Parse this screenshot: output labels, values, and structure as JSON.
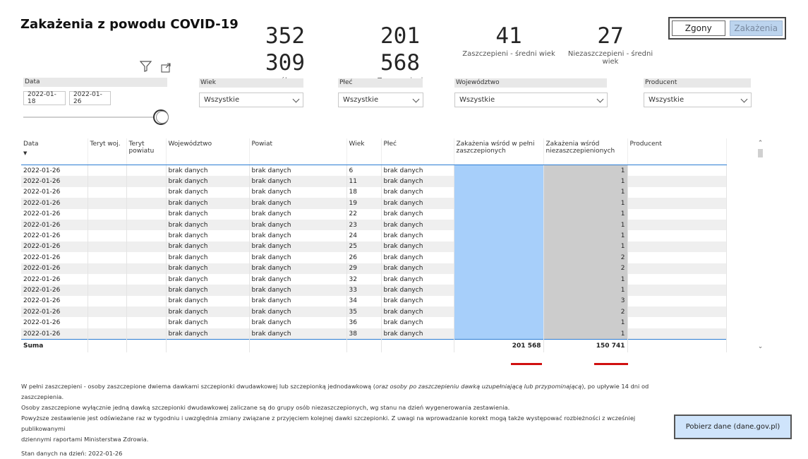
{
  "title": "Zakażenia z powodu COVID-19",
  "kpis": [
    {
      "value": "352 309",
      "label": "ogółem"
    },
    {
      "value": "201 568",
      "label": "Zaszczepieni"
    },
    {
      "value": "41",
      "label": "Zaszczepieni - średni wiek"
    },
    {
      "value": "27",
      "label": "Niezaszczepieni - średni wiek"
    }
  ],
  "toggle": {
    "deaths": "Zgony",
    "infections": "Zakażenia"
  },
  "icons": {
    "filter": "filter-icon",
    "expand": "expand-icon"
  },
  "filters": {
    "date": {
      "label": "Data",
      "from": "2022-01-18",
      "to": "2022-01-26"
    },
    "age": {
      "label": "Wiek",
      "value": "Wszystkie"
    },
    "sex": {
      "label": "Płeć",
      "value": "Wszystkie"
    },
    "voivodeship": {
      "label": "Województwo",
      "value": "Wszystkie"
    },
    "producer": {
      "label": "Producent",
      "value": "Wszystkie"
    }
  },
  "table": {
    "headers": [
      "Data",
      "Teryt woj.",
      "Teryt powiatu",
      "Województwo",
      "Powiat",
      "Wiek",
      "Płeć",
      "Zakażenia wśród w pełni zaszczepionych",
      "Zakażenia wśród niezaszczepienionych",
      "Producent"
    ],
    "rows": [
      {
        "date": "2022-01-26",
        "woj": "brak danych",
        "powiat": "brak danych",
        "age": "6",
        "sex": "brak danych",
        "unvac": "1"
      },
      {
        "date": "2022-01-26",
        "woj": "brak danych",
        "powiat": "brak danych",
        "age": "11",
        "sex": "brak danych",
        "unvac": "1"
      },
      {
        "date": "2022-01-26",
        "woj": "brak danych",
        "powiat": "brak danych",
        "age": "18",
        "sex": "brak danych",
        "unvac": "1"
      },
      {
        "date": "2022-01-26",
        "woj": "brak danych",
        "powiat": "brak danych",
        "age": "19",
        "sex": "brak danych",
        "unvac": "1"
      },
      {
        "date": "2022-01-26",
        "woj": "brak danych",
        "powiat": "brak danych",
        "age": "22",
        "sex": "brak danych",
        "unvac": "1"
      },
      {
        "date": "2022-01-26",
        "woj": "brak danych",
        "powiat": "brak danych",
        "age": "23",
        "sex": "brak danych",
        "unvac": "1"
      },
      {
        "date": "2022-01-26",
        "woj": "brak danych",
        "powiat": "brak danych",
        "age": "24",
        "sex": "brak danych",
        "unvac": "1"
      },
      {
        "date": "2022-01-26",
        "woj": "brak danych",
        "powiat": "brak danych",
        "age": "25",
        "sex": "brak danych",
        "unvac": "1"
      },
      {
        "date": "2022-01-26",
        "woj": "brak danych",
        "powiat": "brak danych",
        "age": "26",
        "sex": "brak danych",
        "unvac": "2"
      },
      {
        "date": "2022-01-26",
        "woj": "brak danych",
        "powiat": "brak danych",
        "age": "29",
        "sex": "brak danych",
        "unvac": "2"
      },
      {
        "date": "2022-01-26",
        "woj": "brak danych",
        "powiat": "brak danych",
        "age": "32",
        "sex": "brak danych",
        "unvac": "1"
      },
      {
        "date": "2022-01-26",
        "woj": "brak danych",
        "powiat": "brak danych",
        "age": "33",
        "sex": "brak danych",
        "unvac": "1"
      },
      {
        "date": "2022-01-26",
        "woj": "brak danych",
        "powiat": "brak danych",
        "age": "34",
        "sex": "brak danych",
        "unvac": "3"
      },
      {
        "date": "2022-01-26",
        "woj": "brak danych",
        "powiat": "brak danych",
        "age": "35",
        "sex": "brak danych",
        "unvac": "2"
      },
      {
        "date": "2022-01-26",
        "woj": "brak danych",
        "powiat": "brak danych",
        "age": "36",
        "sex": "brak danych",
        "unvac": "1"
      },
      {
        "date": "2022-01-26",
        "woj": "brak danych",
        "powiat": "brak danych",
        "age": "38",
        "sex": "brak danych",
        "unvac": "1"
      }
    ],
    "sum": {
      "label": "Suma",
      "vac": "201 568",
      "unvac": "150 741"
    }
  },
  "notes": {
    "line1_a": "W pełni zaszczepieni - osoby zaszczepione dwiema dawkami szczepionki dwudawkowej lub szczepionką jednodawkową (",
    "line1_italic": "oraz osoby po zaszczepieniu dawką uzupełniającą lub przypominającą",
    "line1_b": "), po upływie 14 dni od zaszczepienia.",
    "line2": "Osoby zaszczepione wyłącznie jedną dawką szczepionki dwudawkowej zaliczane są do grupy osób niezaszczepionych, wg stanu na dzień wygenerowania zestawienia.",
    "line3": "Powyższe zestawienie jest odświeżane raz w tygodniu i uwzględnia zmiany związane z przyjęciem kolejnej dawki szczepionki. Z uwagi na wprowadzanie korekt mogą także występować rozbieżności z wcześniej publikowanymi",
    "line4": "dziennymi raportami Ministerstwa Zdrowia.",
    "line5": "Stan danych na dzień: 2022-01-26"
  },
  "download_button": "Pobierz dane (dane.gov.pl)",
  "colors": {
    "vaccinated": "#a7cffa",
    "unvaccinated": "#cccccc",
    "accent": "#2b7cd3",
    "sum_underline": "#d01010"
  }
}
